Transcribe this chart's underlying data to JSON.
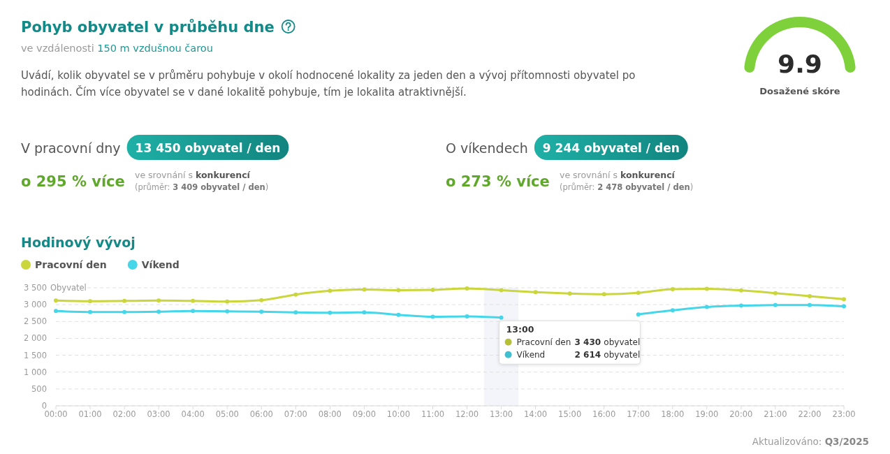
{
  "chart_data": [
    {
      "type": "other",
      "title": "Pohyb obyvatel v průběhu dne",
      "subtitle": "ve vzdálenosti 150 m vzdušnou čarou",
      "annotations": [
        "Uvádí, kolik obyvatel se v průměru pohybuje v okolí hodnocené lokality za jeden den a vývoj přítomnosti obyvatel po hodinách. Čím více obyvatel se v dané lokalitě pohybuje, tím je lokalita atraktivnější.",
        "V pracovní dny",
        "13 450 obyvatel / den",
        "o 295 % více",
        "ve srovnání s konkurencí",
        "(průměr: 3 409 obyvatel / den)",
        "O víkendech",
        "9 244 obyvatel / den",
        "o 273 % více",
        "ve srovnání s konkurencí",
        "(průměr: 2 478 obyvatel / den)",
        "Aktualizováno: Q3/2025"
      ]
    },
    {
      "type": "other",
      "title": "Dosažené skóre",
      "values": [
        9.9
      ],
      "color": "#7ed13b",
      "data_labels": true
    },
    {
      "type": "line",
      "title": "Hodinový vývoj",
      "ylabel": "Obyvatel",
      "categories": [
        "00:00",
        "01:00",
        "02:00",
        "03:00",
        "04:00",
        "05:00",
        "06:00",
        "07:00",
        "08:00",
        "09:00",
        "10:00",
        "11:00",
        "12:00",
        "13:00",
        "14:00",
        "15:00",
        "16:00",
        "17:00",
        "18:00",
        "19:00",
        "20:00",
        "21:00",
        "22:00",
        "23:00"
      ],
      "series": [
        {
          "name": "Pracovní den",
          "color": "#cad63c",
          "values": [
            3120,
            3100,
            3110,
            3120,
            3110,
            3090,
            3130,
            3300,
            3410,
            3450,
            3430,
            3440,
            3480,
            3430,
            3370,
            3330,
            3310,
            3350,
            3460,
            3470,
            3420,
            3340,
            3250,
            3160
          ]
        },
        {
          "name": "Víkend",
          "color": "#46d6ea",
          "values": [
            2810,
            2780,
            2780,
            2790,
            2810,
            2800,
            2790,
            2770,
            2760,
            2770,
            2700,
            2640,
            2650,
            2614,
            null,
            null,
            null,
            2710,
            2830,
            2930,
            2970,
            2990,
            2990,
            2950
          ]
        }
      ],
      "ylim": [
        0,
        3500
      ],
      "yticks": [
        0,
        500,
        {
          "value": 1000,
          "label": "1 000"
        },
        {
          "value": 1500,
          "label": "1 500"
        },
        {
          "value": 2000,
          "label": "2 000"
        },
        {
          "value": 2500,
          "label": "2 500"
        },
        {
          "value": 3000,
          "label": "3 000"
        },
        {
          "value": 3500,
          "label": "3 500"
        }
      ],
      "grid": "y",
      "legend": "top left",
      "marker": "circle",
      "bands": [
        {
          "axis": "x",
          "from": "13:00",
          "to": "13:00",
          "color": "#f3f5fa"
        }
      ],
      "annotations": [
        "13:00",
        "3 430 obyvatel",
        "2 614 obyvatel"
      ]
    }
  ]
}
